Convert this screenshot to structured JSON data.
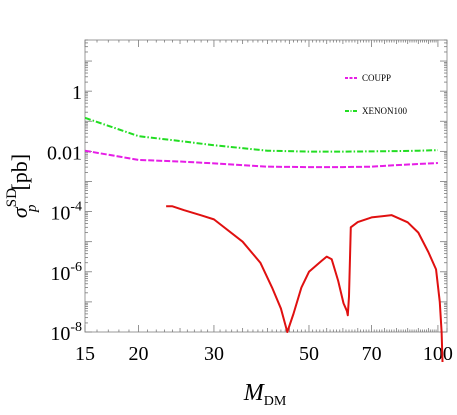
{
  "chart_data": {
    "type": "line",
    "xscale": "log",
    "yscale": "log",
    "xlim": [
      15,
      105
    ],
    "ylim": [
      1e-08,
      50
    ],
    "xticks": [
      {
        "value": 15,
        "label": "15"
      },
      {
        "value": 20,
        "label": "20"
      },
      {
        "value": 30,
        "label": "30"
      },
      {
        "value": 50,
        "label": "50"
      },
      {
        "value": 70,
        "label": "70"
      },
      {
        "value": 100,
        "label": "100"
      }
    ],
    "yticks": [
      {
        "value": 1,
        "label": "1"
      },
      {
        "value": 0.01,
        "label": "0.01"
      },
      {
        "value": 0.0001,
        "label": "10",
        "sup": "-4"
      },
      {
        "value": 1e-06,
        "label": "10",
        "sup": "-6"
      },
      {
        "value": 1e-08,
        "label": "10",
        "sup": "-8"
      }
    ],
    "xlabel": {
      "main": "M",
      "sub": "DM"
    },
    "ylabel": {
      "main": "σ",
      "sup": "SD",
      "sub": "p",
      "unit": "[pb]"
    },
    "grid": false,
    "legend_position": "top-right",
    "series": [
      {
        "name": "COUPP",
        "color": "#e61ee6",
        "style": "dashed",
        "x": [
          15,
          20,
          25,
          30,
          40,
          50,
          60,
          70,
          80,
          90,
          100
        ],
        "y": [
          0.0105,
          0.0052,
          0.0046,
          0.004,
          0.0031,
          0.003,
          0.003,
          0.0031,
          0.0035,
          0.0038,
          0.0041
        ]
      },
      {
        "name": "XENON100",
        "color": "#22dd22",
        "style": "dashdot",
        "x": [
          15,
          20,
          25,
          30,
          40,
          50,
          60,
          70,
          80,
          90,
          100
        ],
        "y": [
          0.13,
          0.032,
          0.022,
          0.016,
          0.0105,
          0.0098,
          0.0098,
          0.01,
          0.0102,
          0.0105,
          0.011
        ]
      },
      {
        "name": "",
        "color": "#e01010",
        "style": "solid",
        "x": [
          23.2,
          24.0,
          25.5,
          28,
          30,
          35,
          38.5,
          41,
          43.0,
          44.5,
          46,
          48.0,
          50,
          53.5,
          55.0,
          56.5,
          58.5,
          60.2,
          61.3,
          61.6,
          62.0,
          62.6,
          65,
          70,
          78,
          85,
          90,
          95,
          99,
          101,
          102,
          103
        ],
        "y": [
          0.00015,
          0.00015,
          0.000112,
          7.5e-05,
          5.5e-05,
          1e-05,
          2e-06,
          3e-07,
          6e-08,
          1e-08,
          4e-08,
          3e-07,
          1e-06,
          2.3e-06,
          3.2e-06,
          2.6e-06,
          5e-07,
          9e-08,
          5e-08,
          3.6e-08,
          1.5e-07,
          3e-05,
          4.5e-05,
          6.4e-05,
          7.6e-05,
          4.4e-05,
          2e-05,
          4.5e-06,
          1.2e-06,
          1e-07,
          1e-08,
          1e-10
        ]
      }
    ]
  }
}
